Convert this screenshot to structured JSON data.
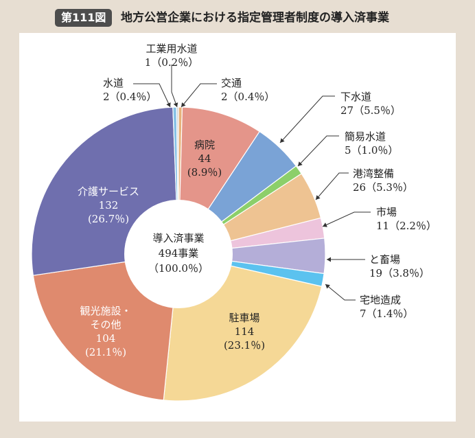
{
  "figure": {
    "badge": "第111図",
    "title": "地方公営企業における指定管理者制度の導入済事業"
  },
  "chart_data": {
    "type": "pie",
    "donut": true,
    "start_angle_deg": 0,
    "direction": "clockwise",
    "center_label": [
      "導入済事業",
      "494事業",
      "（100.0％）"
    ],
    "total": 494,
    "slices": [
      {
        "id": "kotsu",
        "label": "交通",
        "value": 2,
        "percent": "0.4％",
        "color": "#e7b27a",
        "label_position": "outside"
      },
      {
        "id": "byoin",
        "label": "病院",
        "value": 44,
        "percent": "8.9％",
        "color": "#e4958a",
        "label_position": "inside"
      },
      {
        "id": "gesuido",
        "label": "下水道",
        "value": 27,
        "percent": "5.5％",
        "color": "#7aa3d6",
        "label_position": "outside"
      },
      {
        "id": "kan-i-suido",
        "label": "簡易水道",
        "value": 5,
        "percent": "1.0％",
        "color": "#8ccf6a",
        "label_position": "outside"
      },
      {
        "id": "kowan",
        "label": "港湾整備",
        "value": 26,
        "percent": "5.3％",
        "color": "#eec392",
        "label_position": "outside"
      },
      {
        "id": "ichiba",
        "label": "市場",
        "value": 11,
        "percent": "2.2％",
        "color": "#edc4dc",
        "label_position": "outside"
      },
      {
        "id": "tochikuba",
        "label": "と畜場",
        "value": 19,
        "percent": "3.8％",
        "color": "#b4aed8",
        "label_position": "outside"
      },
      {
        "id": "takuchi",
        "label": "宅地造成",
        "value": 7,
        "percent": "1.4％",
        "color": "#5bc2ef",
        "label_position": "outside"
      },
      {
        "id": "chushajo",
        "label": "駐車場",
        "value": 114,
        "percent": "23.1％",
        "color": "#f5d896",
        "label_position": "inside"
      },
      {
        "id": "kanko",
        "label": "観光施設・その他",
        "label_lines": [
          "観光施設・",
          "その他"
        ],
        "value": 104,
        "percent": "21.1％",
        "color": "#df8a6e",
        "label_position": "inside"
      },
      {
        "id": "kaigo",
        "label": "介護サービス",
        "value": 132,
        "percent": "26.7％",
        "color": "#6f6fae",
        "label_position": "inside"
      },
      {
        "id": "suido",
        "label": "水道",
        "value": 2,
        "percent": "0.4％",
        "color": "#86c1e6",
        "label_position": "outside"
      },
      {
        "id": "kogyo-suido",
        "label": "工業用水道",
        "value": 1,
        "percent": "0.2％",
        "color": "#cfd1d4",
        "label_position": "outside"
      }
    ]
  }
}
